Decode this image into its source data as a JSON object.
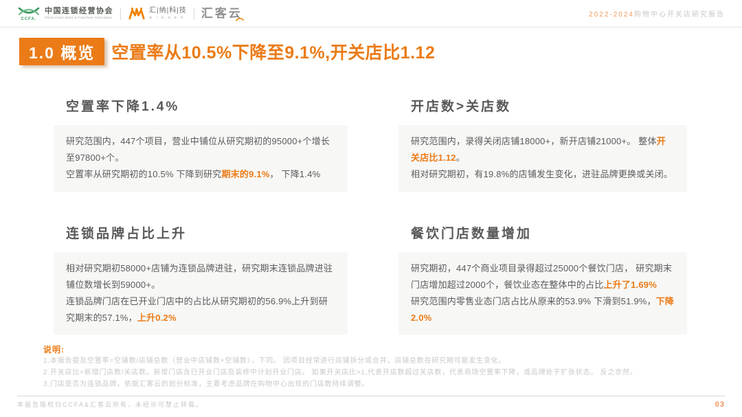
{
  "colors": {
    "accent": "#EB7B17",
    "accent_soft": "#F09B5F",
    "heading_gray": "#595959",
    "body_gray": "#5B5B5B",
    "box_background": "#F7F7F6",
    "muted_gray": "#C8C8C8",
    "ccfa_green": "#3C9A5F"
  },
  "header": {
    "ccfa": {
      "abbr": "CCFA.",
      "name_cn": "中国连锁经营协会",
      "name_en": "China Chain Store & Franchise Association"
    },
    "winner": {
      "chars": "汇|纳|科|技",
      "sub": "W I N N E R"
    },
    "huikeyun": {
      "name": "汇客云"
    },
    "report_title": {
      "highlight": "2022-2024",
      "rest": "购物中心开关店研究报告"
    }
  },
  "title": {
    "badge": "1.0 概览",
    "headline": "空置率从10.5%下降至9.1%,开关店比1.12"
  },
  "sections": [
    {
      "heading": "空置率下降1.4%",
      "paragraphs": [
        [
          {
            "t": "研究范围内，447个项目，营业中铺位从研究期初的95000+个增长至97800+个。"
          }
        ],
        [
          {
            "t": "空置率从研究期初的10.5% 下降到研究"
          },
          {
            "t": "期末的9.1%",
            "hl": true
          },
          {
            "t": "， 下降1.4%"
          }
        ]
      ]
    },
    {
      "heading": "开店数>关店数",
      "paragraphs": [
        [
          {
            "t": "研究范围内，录得关闭店铺18000+，新开店铺21000+。 整体"
          },
          {
            "t": "开关店比1.12",
            "hl": true
          },
          {
            "t": "。"
          }
        ],
        [
          {
            "t": "相对研究期初，有19.8%的店铺发生变化，进驻品牌更换或关闭。"
          }
        ]
      ]
    },
    {
      "heading": "连锁品牌占比上升",
      "paragraphs": [
        [
          {
            "t": "相对研究期初58000+店铺为连锁品牌进驻，研究期末连锁品牌进驻铺位数增长到59000+。"
          }
        ],
        [
          {
            "t": "连锁品牌门店在已开业门店中的占比从研究期初的56.9%上升到研究期末的57.1%，"
          },
          {
            "t": "上升0.2%",
            "hl": true
          }
        ]
      ]
    },
    {
      "heading": "餐饮门店数量增加",
      "paragraphs": [
        [
          {
            "t": "研究期初，447个商业项目录得超过25000个餐饮门店， 研究期末门店增加超过2000个，餐饮业态在整体中的占比"
          },
          {
            "t": "上升了1.69%",
            "hl": true
          }
        ],
        [
          {
            "t": "研究范围内零售业态门店占比从原来的53.9% 下滑到51.9%，"
          },
          {
            "t": "下降2.0%",
            "hl": true
          }
        ]
      ]
    }
  ],
  "notes": {
    "label": "说明:",
    "items": [
      "1.本报告提及空置率=空铺数/店铺总数（营业中店铺数+空铺数），下同。 因项目经常进行店铺拆分或合并，店铺总数在研究期可能发生变化。",
      "2.开关店比=新增门店数/关店数。新增门店含已开业门店及装修中计划开业门店。 如果开关店比>1,代表开店数超过关店数，代表商场空置率下降，或品牌处于扩张状态。 反之亦然。",
      "3.门店是否为连锁品牌，依据汇客云的划分标准，主要考虑品牌在购物中心出现的门店数持续调整。"
    ]
  },
  "footer": {
    "copyright": "本报告版权归CCFA&汇客云所有，未经许可禁止转载。",
    "page_number": "03"
  }
}
